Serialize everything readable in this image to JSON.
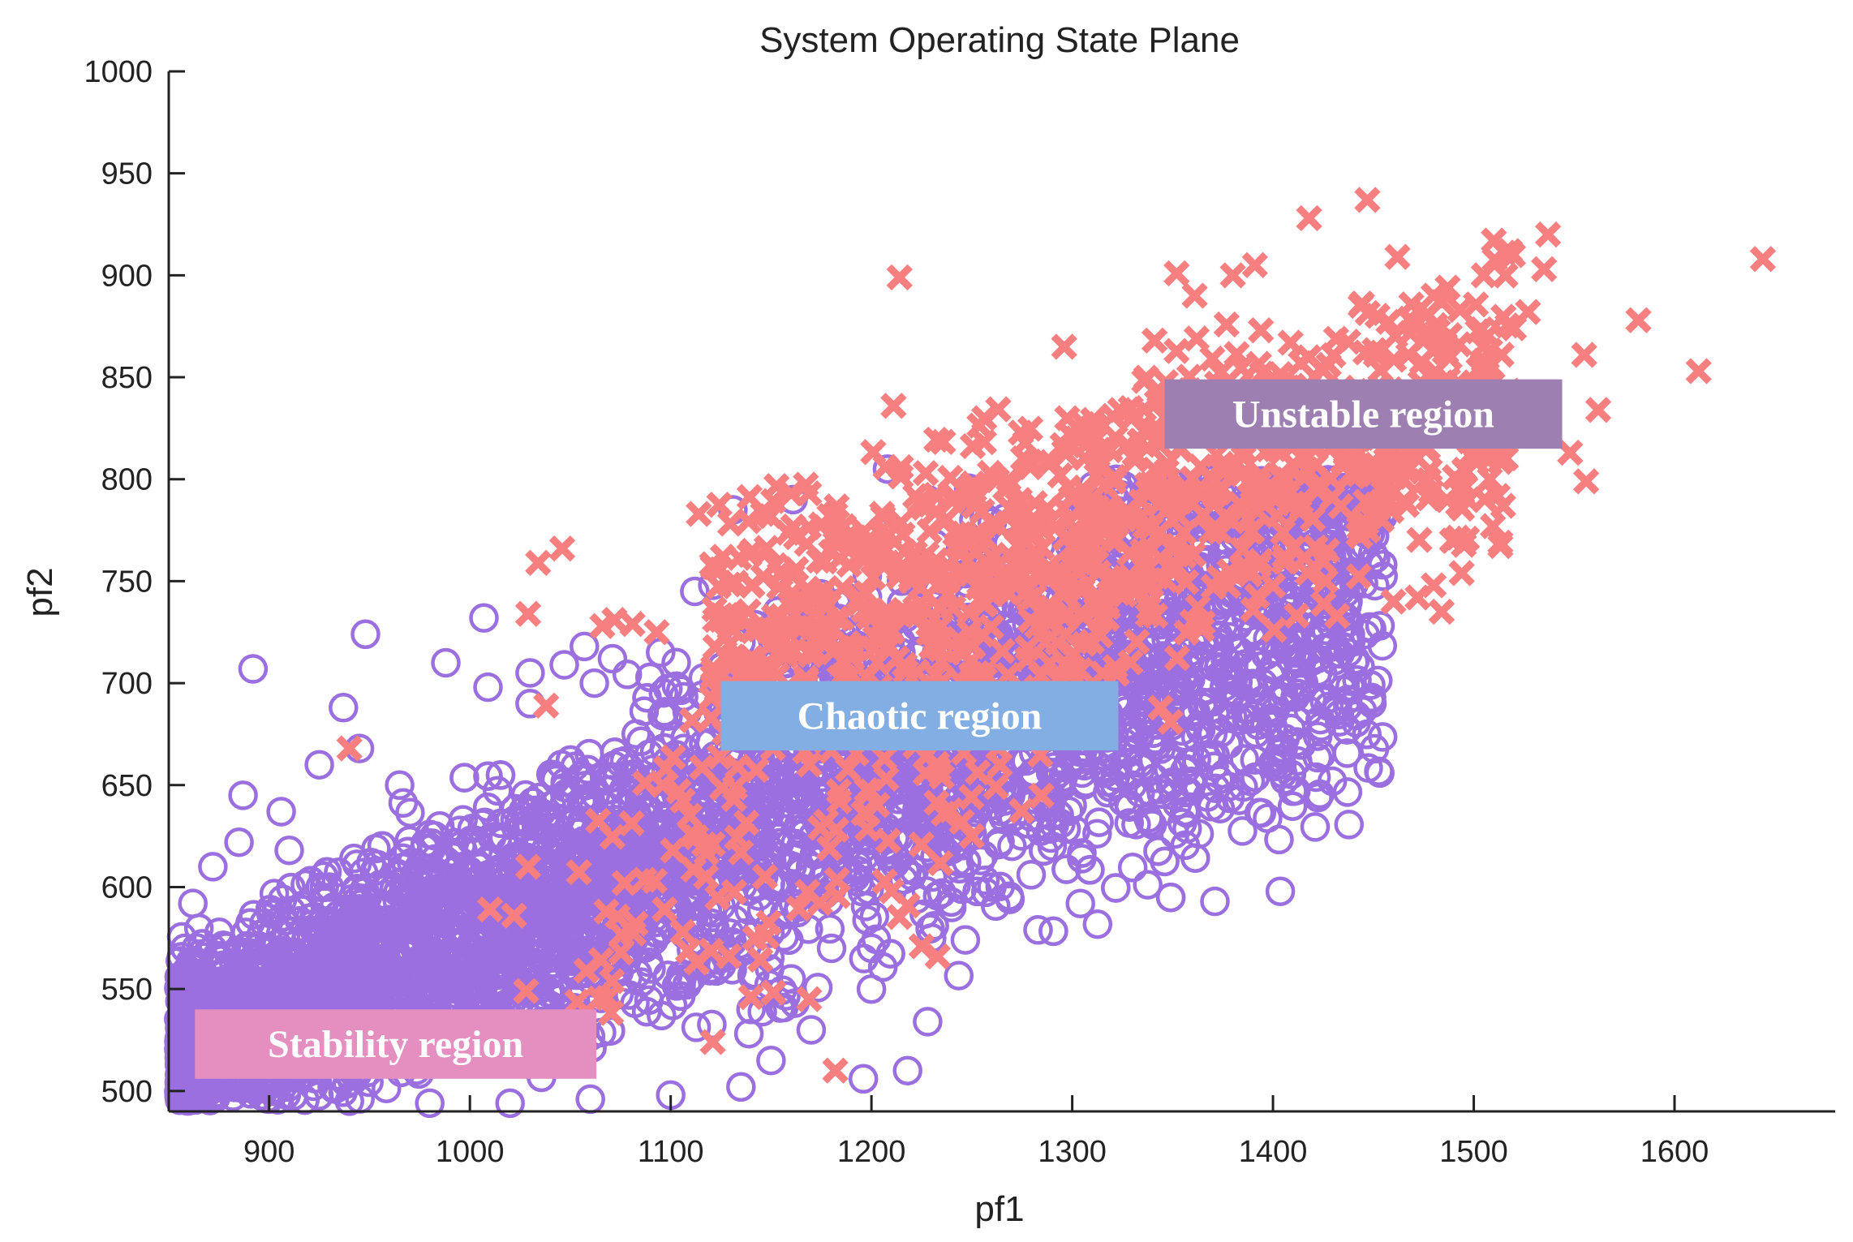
{
  "chart_data": {
    "type": "scatter",
    "title": "System Operating State Plane",
    "xlabel": "pf1",
    "ylabel": "pf2",
    "xlim": [
      850,
      1680
    ],
    "ylim": [
      490,
      1000
    ],
    "xticks": [
      900,
      1000,
      1100,
      1200,
      1300,
      1400,
      1500,
      1600
    ],
    "yticks": [
      500,
      550,
      600,
      650,
      700,
      750,
      800,
      850,
      900,
      950,
      1000
    ],
    "grid": false,
    "colors": {
      "circle": "#9b6fe0",
      "cross": "#f87f7f",
      "axis": "#222222"
    },
    "regions": [
      {
        "label": "Stability region",
        "color": "#e48fc0",
        "x": [
          863,
          1063
        ],
        "y": [
          506,
          540
        ]
      },
      {
        "label": "Chaotic region",
        "color": "#82aee3",
        "x": [
          1125,
          1323
        ],
        "y": [
          667,
          701
        ]
      },
      {
        "label": "Unstable region",
        "color": "#9d7fb1",
        "x": [
          1346,
          1544
        ],
        "y": [
          815,
          849
        ]
      }
    ],
    "series": [
      {
        "marker": "circle",
        "points": [
          [
            892,
            707
          ],
          [
            948,
            724
          ],
          [
            1007,
            732
          ],
          [
            988,
            710
          ],
          [
            937,
            688
          ],
          [
            1208,
            805
          ],
          [
            1251,
            780
          ],
          [
            1316,
            800
          ],
          [
            1348,
            796
          ],
          [
            1448,
            788
          ],
          [
            1448,
            758
          ],
          [
            1424,
            745
          ],
          [
            1405,
            722
          ],
          [
            1422,
            712
          ],
          [
            1376,
            683
          ],
          [
            1351,
            626
          ],
          [
            1283,
            579
          ],
          [
            1196,
            506
          ],
          [
            1228,
            534
          ],
          [
            1218,
            510
          ],
          [
            1140,
            540
          ],
          [
            1101,
            542
          ],
          [
            1131,
            785
          ],
          [
            1161,
            790
          ],
          [
            1112,
            745
          ],
          [
            1228,
            790
          ],
          [
            1047,
            709
          ],
          [
            1057,
            718
          ],
          [
            1009,
            698
          ],
          [
            1030,
            705
          ],
          [
            1071,
            712
          ],
          [
            1121,
            748
          ],
          [
            887,
            645
          ],
          [
            906,
            637
          ],
          [
            925,
            660
          ],
          [
            945,
            668
          ],
          [
            965,
            650
          ],
          [
            985,
            630
          ],
          [
            1030,
            690
          ],
          [
            1062,
            700
          ],
          [
            1095,
            715
          ],
          [
            1135,
            720
          ],
          [
            1175,
            735
          ],
          [
            1215,
            750
          ],
          [
            1255,
            760
          ],
          [
            1300,
            755
          ],
          [
            1340,
            750
          ],
          [
            1380,
            740
          ],
          [
            1410,
            745
          ],
          [
            1395,
            700
          ],
          [
            1370,
            675
          ],
          [
            1330,
            650
          ],
          [
            1290,
            620
          ],
          [
            1260,
            600
          ],
          [
            1230,
            575
          ],
          [
            1200,
            550
          ],
          [
            1170,
            530
          ],
          [
            1150,
            515
          ],
          [
            1135,
            502
          ],
          [
            1100,
            498
          ],
          [
            1060,
            496
          ],
          [
            1020,
            494
          ],
          [
            980,
            494
          ],
          [
            940,
            495
          ],
          [
            900,
            496
          ],
          [
            870,
            500
          ],
          [
            858,
            520
          ],
          [
            857,
            545
          ],
          [
            858,
            570
          ],
          [
            862,
            592
          ],
          [
            872,
            610
          ],
          [
            885,
            622
          ],
          [
            910,
            618
          ],
          [
            930,
            600
          ],
          [
            960,
            590
          ],
          [
            1000,
            585
          ],
          [
            1040,
            580
          ],
          [
            1080,
            570
          ],
          [
            1120,
            560
          ],
          [
            1160,
            555
          ],
          [
            1200,
            570
          ],
          [
            1240,
            590
          ],
          [
            1270,
            620
          ],
          [
            1300,
            640
          ],
          [
            1320,
            670
          ],
          [
            1345,
            700
          ],
          [
            1360,
            720
          ],
          [
            1390,
            725
          ]
        ],
        "dense": [
          {
            "x": [
              1080,
              1480
            ],
            "y": [
              750,
              800
            ],
            "count": 0
          },
          {
            "x": [
              855,
              1470
            ],
            "y": [
              495,
              790
            ],
            "count": 5200
          }
        ]
      },
      {
        "marker": "cross",
        "points": [
          [
            1644,
            908
          ],
          [
            1612,
            853
          ],
          [
            1582,
            878
          ],
          [
            1562,
            834
          ],
          [
            1555,
            861
          ],
          [
            1556,
            799
          ],
          [
            1548,
            813
          ],
          [
            1537,
            920
          ],
          [
            1535,
            903
          ],
          [
            1527,
            882
          ],
          [
            1520,
            874
          ],
          [
            1510,
            917
          ],
          [
            1505,
            900
          ],
          [
            1505,
            858
          ],
          [
            1494,
            754
          ],
          [
            1487,
            894
          ],
          [
            1484,
            735
          ],
          [
            1480,
            748
          ],
          [
            1472,
            742
          ],
          [
            1462,
            909
          ],
          [
            1460,
            740
          ],
          [
            1447,
            937
          ],
          [
            1432,
            733
          ],
          [
            1418,
            928
          ],
          [
            1394,
            873
          ],
          [
            1391,
            905
          ],
          [
            1380,
            900
          ],
          [
            1362,
            869
          ],
          [
            1361,
            890
          ],
          [
            1352,
            901
          ],
          [
            1341,
            868
          ],
          [
            1296,
            865
          ],
          [
            1214,
            899
          ],
          [
            1211,
            836
          ],
          [
            1207,
            806
          ],
          [
            1160,
            793
          ],
          [
            1146,
            783
          ],
          [
            1114,
            783
          ],
          [
            1126,
            762
          ],
          [
            1046,
            766
          ],
          [
            1034,
            759
          ],
          [
            1029,
            734
          ],
          [
            1072,
            731
          ],
          [
            1066,
            728
          ],
          [
            1081,
            729
          ],
          [
            1093,
            725
          ],
          [
            1038,
            689
          ],
          [
            940,
            668
          ],
          [
            1029,
            610
          ],
          [
            1022,
            586
          ],
          [
            1010,
            589
          ],
          [
            1028,
            549
          ],
          [
            1058,
            559
          ],
          [
            1068,
            588
          ],
          [
            1077,
            602
          ],
          [
            1092,
            603
          ],
          [
            1096,
            650
          ],
          [
            1104,
            647
          ],
          [
            1110,
            626
          ],
          [
            1097,
            589
          ],
          [
            1106,
            578
          ],
          [
            1113,
            563
          ],
          [
            1121,
            621
          ],
          [
            1135,
            617
          ],
          [
            1147,
            605
          ],
          [
            1142,
            575
          ],
          [
            1140,
            546
          ],
          [
            1121,
            524
          ],
          [
            1169,
            545
          ],
          [
            1179,
            619
          ],
          [
            1184,
            642
          ],
          [
            1198,
            636
          ],
          [
            1182,
            510
          ],
          [
            1210,
            598
          ],
          [
            1218,
            591
          ],
          [
            1225,
            571
          ],
          [
            1233,
            566
          ],
          [
            1236,
            636
          ],
          [
            1245,
            632
          ],
          [
            1250,
            625
          ],
          [
            1262,
            649
          ],
          [
            1264,
            660
          ],
          [
            1249,
            700
          ],
          [
            1268,
            704
          ],
          [
            1302,
            820
          ],
          [
            1344,
            688
          ],
          [
            1349,
            681
          ],
          [
            1347,
            804
          ]
        ],
        "dense": [
          {
            "x": [
              1120,
              1520
            ],
            "y": [
              700,
              850
            ],
            "count": 950
          },
          {
            "x": [
              1050,
              1300
            ],
            "y": [
              560,
              720
            ],
            "count": 120
          }
        ]
      }
    ]
  }
}
